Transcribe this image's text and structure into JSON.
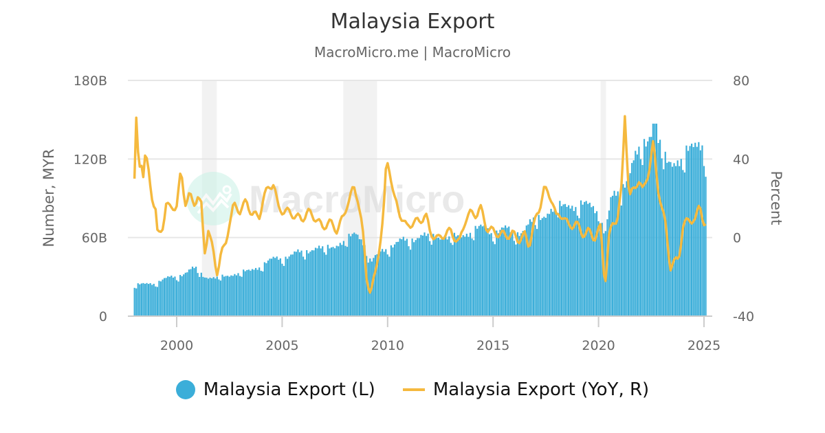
{
  "header": {
    "title": "Malaysia Export",
    "subtitle": "MacroMicro.me | MacroMicro"
  },
  "watermark": {
    "text": "MacroMicro"
  },
  "legend": {
    "items": [
      {
        "label": "Malaysia Export (L)",
        "color": "#3BAED9",
        "shape": "circle"
      },
      {
        "label": "Malaysia Export (YoY, R)",
        "color": "#F5B93E",
        "shape": "line"
      }
    ]
  },
  "colors": {
    "bars": "#3BAED9",
    "line": "#F5B93E",
    "grid": "#e6e6e6",
    "recession": "#f2f2f2",
    "axis_text": "#666666"
  },
  "chart_data": {
    "type": "bar+line",
    "title": "Malaysia Export",
    "subtitle": "MacroMicro.me | MacroMicro",
    "xlabel": "",
    "ylabel_left": "Number, MYR",
    "ylabel_right": "Percent",
    "x_ticks": [
      "2000",
      "2005",
      "2010",
      "2015",
      "2020",
      "2025"
    ],
    "y_left_ticks": [
      "0",
      "60B",
      "120B",
      "180B"
    ],
    "y_left_range": [
      0,
      180
    ],
    "y_right_ticks": [
      "-40",
      "0",
      "40",
      "80"
    ],
    "y_right_range": [
      -40,
      80
    ],
    "grid": true,
    "legend_position": "bottom",
    "recession_bands": [
      [
        2001.2,
        2001.9
      ],
      [
        2007.9,
        2009.5
      ],
      [
        2020.1,
        2020.35
      ]
    ],
    "x_start": 1998.0,
    "x_step_months": 1,
    "series": [
      {
        "name": "Malaysia Export (L)",
        "type": "bar",
        "unit": "Billion MYR",
        "anchors": [
          [
            1998.0,
            23
          ],
          [
            1998.5,
            24
          ],
          [
            1999.0,
            25
          ],
          [
            1999.5,
            28
          ],
          [
            2000.0,
            30
          ],
          [
            2000.5,
            33
          ],
          [
            2000.9,
            36
          ],
          [
            2001.3,
            30
          ],
          [
            2001.8,
            28
          ],
          [
            2002.3,
            30
          ],
          [
            2002.9,
            32
          ],
          [
            2003.5,
            34
          ],
          [
            2004.0,
            38
          ],
          [
            2004.5,
            42
          ],
          [
            2005.0,
            44
          ],
          [
            2005.5,
            46
          ],
          [
            2006.0,
            48
          ],
          [
            2006.5,
            51
          ],
          [
            2007.0,
            50
          ],
          [
            2007.5,
            53
          ],
          [
            2008.0,
            56
          ],
          [
            2008.5,
            62
          ],
          [
            2008.9,
            55
          ],
          [
            2009.2,
            40
          ],
          [
            2009.6,
            47
          ],
          [
            2010.0,
            52
          ],
          [
            2010.5,
            55
          ],
          [
            2011.0,
            57
          ],
          [
            2011.5,
            60
          ],
          [
            2012.0,
            59
          ],
          [
            2012.5,
            60
          ],
          [
            2013.0,
            58
          ],
          [
            2013.5,
            60
          ],
          [
            2014.0,
            64
          ],
          [
            2014.5,
            66
          ],
          [
            2015.0,
            63
          ],
          [
            2015.5,
            65
          ],
          [
            2016.0,
            62
          ],
          [
            2016.5,
            65
          ],
          [
            2017.0,
            72
          ],
          [
            2017.5,
            77
          ],
          [
            2018.0,
            80
          ],
          [
            2018.5,
            84
          ],
          [
            2019.0,
            82
          ],
          [
            2019.5,
            83
          ],
          [
            2020.0,
            80
          ],
          [
            2020.3,
            60
          ],
          [
            2020.6,
            86
          ],
          [
            2021.0,
            95
          ],
          [
            2021.5,
            108
          ],
          [
            2022.0,
            125
          ],
          [
            2022.5,
            140
          ],
          [
            2022.9,
            128
          ],
          [
            2023.2,
            115
          ],
          [
            2023.6,
            116
          ],
          [
            2024.0,
            118
          ],
          [
            2024.5,
            126
          ],
          [
            2024.9,
            132
          ],
          [
            2025.1,
            120
          ]
        ],
        "peak_value": 147
      },
      {
        "name": "Malaysia Export (YoY, R)",
        "type": "line",
        "unit": "Percent",
        "anchors": [
          [
            1998.0,
            30
          ],
          [
            1998.1,
            65
          ],
          [
            1998.2,
            30
          ],
          [
            1998.3,
            42
          ],
          [
            1998.4,
            31
          ],
          [
            1998.5,
            42
          ],
          [
            1998.6,
            38
          ],
          [
            1998.8,
            22
          ],
          [
            1999.0,
            15
          ],
          [
            1999.1,
            0
          ],
          [
            1999.3,
            3
          ],
          [
            1999.5,
            18
          ],
          [
            1999.7,
            14
          ],
          [
            2000.0,
            17
          ],
          [
            2000.2,
            33
          ],
          [
            2000.4,
            18
          ],
          [
            2000.6,
            22
          ],
          [
            2000.8,
            16
          ],
          [
            2001.0,
            22
          ],
          [
            2001.2,
            15
          ],
          [
            2001.3,
            -10
          ],
          [
            2001.5,
            5
          ],
          [
            2001.7,
            -6
          ],
          [
            2001.9,
            -18
          ],
          [
            2002.1,
            -8
          ],
          [
            2002.3,
            -5
          ],
          [
            2002.5,
            8
          ],
          [
            2002.7,
            16
          ],
          [
            2003.0,
            14
          ],
          [
            2003.3,
            18
          ],
          [
            2003.6,
            12
          ],
          [
            2003.9,
            10
          ],
          [
            2004.1,
            20
          ],
          [
            2004.4,
            26
          ],
          [
            2004.6,
            28
          ],
          [
            2004.8,
            15
          ],
          [
            2005.0,
            14
          ],
          [
            2005.5,
            12
          ],
          [
            2005.9,
            9
          ],
          [
            2006.2,
            13
          ],
          [
            2006.6,
            10
          ],
          [
            2006.9,
            5
          ],
          [
            2007.2,
            8
          ],
          [
            2007.6,
            4
          ],
          [
            2007.9,
            10
          ],
          [
            2008.1,
            18
          ],
          [
            2008.4,
            25
          ],
          [
            2008.6,
            20
          ],
          [
            2008.8,
            5
          ],
          [
            2009.0,
            -20
          ],
          [
            2009.2,
            -28
          ],
          [
            2009.4,
            -20
          ],
          [
            2009.6,
            -5
          ],
          [
            2009.8,
            10
          ],
          [
            2009.95,
            40
          ],
          [
            2010.1,
            35
          ],
          [
            2010.3,
            20
          ],
          [
            2010.6,
            12
          ],
          [
            2010.9,
            5
          ],
          [
            2011.2,
            8
          ],
          [
            2011.5,
            8
          ],
          [
            2011.8,
            12
          ],
          [
            2012.0,
            3
          ],
          [
            2012.4,
            -1
          ],
          [
            2012.7,
            2
          ],
          [
            2013.0,
            3
          ],
          [
            2013.4,
            -3
          ],
          [
            2013.7,
            10
          ],
          [
            2013.9,
            12
          ],
          [
            2014.2,
            12
          ],
          [
            2014.4,
            15
          ],
          [
            2014.7,
            5
          ],
          [
            2015.0,
            3
          ],
          [
            2015.3,
            2
          ],
          [
            2015.6,
            1
          ],
          [
            2015.9,
            2
          ],
          [
            2016.2,
            -1
          ],
          [
            2016.5,
            1
          ],
          [
            2016.7,
            -4
          ],
          [
            2016.9,
            5
          ],
          [
            2017.2,
            15
          ],
          [
            2017.4,
            25
          ],
          [
            2017.6,
            22
          ],
          [
            2017.8,
            20
          ],
          [
            2018.0,
            10
          ],
          [
            2018.3,
            12
          ],
          [
            2018.6,
            5
          ],
          [
            2018.9,
            8
          ],
          [
            2019.2,
            2
          ],
          [
            2019.5,
            3
          ],
          [
            2019.8,
            0
          ],
          [
            2020.1,
            5
          ],
          [
            2020.3,
            -24
          ],
          [
            2020.5,
            0
          ],
          [
            2020.7,
            8
          ],
          [
            2020.9,
            10
          ],
          [
            2021.1,
            25
          ],
          [
            2021.25,
            63
          ],
          [
            2021.45,
            20
          ],
          [
            2021.7,
            25
          ],
          [
            2021.9,
            30
          ],
          [
            2022.1,
            23
          ],
          [
            2022.4,
            35
          ],
          [
            2022.6,
            48
          ],
          [
            2022.8,
            27
          ],
          [
            2023.0,
            15
          ],
          [
            2023.2,
            5
          ],
          [
            2023.4,
            -15
          ],
          [
            2023.6,
            -13
          ],
          [
            2023.8,
            -10
          ],
          [
            2024.0,
            5
          ],
          [
            2024.3,
            10
          ],
          [
            2024.6,
            8
          ],
          [
            2024.8,
            18
          ],
          [
            2025.0,
            7
          ],
          [
            2025.1,
            5
          ]
        ]
      }
    ]
  }
}
